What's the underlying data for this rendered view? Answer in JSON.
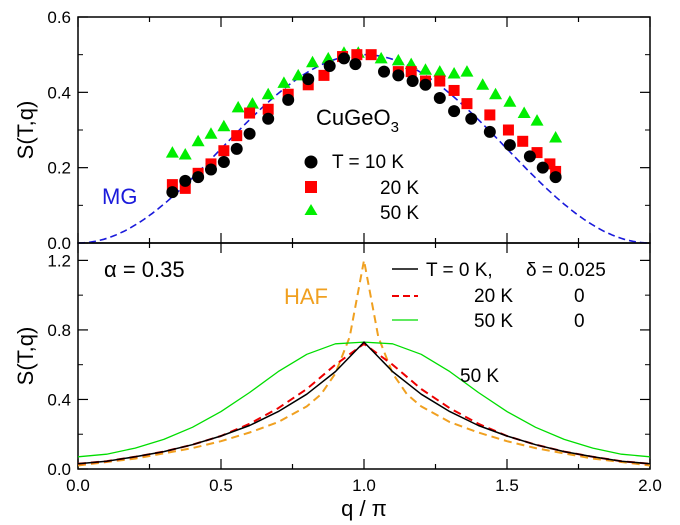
{
  "chart_data": [
    {
      "type": "scatter",
      "title": "",
      "xlabel": "",
      "ylabel": "S(T,q)",
      "xlim": [
        0.0,
        2.0
      ],
      "ylim": [
        0.0,
        0.6
      ],
      "xticks": [],
      "yticks": [
        "0.0",
        "0.2",
        "0.4",
        "0.6"
      ],
      "annotations": {
        "material_prefix": "CuGeO",
        "material_subscript": "3",
        "mg_label": "MG",
        "legend_10K": "T = 10 K",
        "legend_20K": "20 K",
        "legend_50K": "50 K"
      },
      "colors": {
        "10K": "#000000",
        "20K": "#ff0000",
        "50K": "#00ee00",
        "MG": "#1a1adb"
      },
      "series": [
        {
          "name": "T = 10 K",
          "marker": "circle",
          "x": [
            0.33,
            0.375,
            0.42,
            0.465,
            0.51,
            0.555,
            0.6,
            0.665,
            0.735,
            0.805,
            0.88,
            0.93,
            0.97,
            1.07,
            1.12,
            1.17,
            1.215,
            1.265,
            1.315,
            1.375,
            1.44,
            1.51,
            1.58,
            1.625,
            1.67
          ],
          "y": [
            0.135,
            0.165,
            0.175,
            0.195,
            0.215,
            0.25,
            0.29,
            0.33,
            0.38,
            0.435,
            0.47,
            0.49,
            0.475,
            0.455,
            0.445,
            0.43,
            0.42,
            0.385,
            0.35,
            0.33,
            0.295,
            0.26,
            0.23,
            0.2,
            0.175
          ]
        },
        {
          "name": "20 K",
          "marker": "square",
          "x": [
            0.33,
            0.375,
            0.42,
            0.465,
            0.51,
            0.555,
            0.6,
            0.665,
            0.735,
            0.805,
            0.86,
            0.925,
            0.975,
            1.025,
            1.12,
            1.165,
            1.215,
            1.265,
            1.315,
            1.36,
            1.44,
            1.505,
            1.555,
            1.605,
            1.65,
            1.67
          ],
          "y": [
            0.155,
            0.145,
            0.185,
            0.21,
            0.245,
            0.285,
            0.345,
            0.355,
            0.395,
            0.42,
            0.445,
            0.495,
            0.5,
            0.5,
            0.455,
            0.455,
            0.43,
            0.43,
            0.405,
            0.37,
            0.34,
            0.3,
            0.27,
            0.24,
            0.21,
            0.19
          ]
        },
        {
          "name": "50 K",
          "marker": "triangle",
          "x": [
            0.33,
            0.375,
            0.42,
            0.465,
            0.51,
            0.56,
            0.61,
            0.665,
            0.72,
            0.77,
            0.82,
            0.875,
            0.93,
            0.98,
            1.06,
            1.12,
            1.165,
            1.215,
            1.265,
            1.315,
            1.36,
            1.415,
            1.46,
            1.51,
            1.56,
            1.605,
            1.67
          ],
          "y": [
            0.24,
            0.235,
            0.27,
            0.29,
            0.31,
            0.36,
            0.37,
            0.395,
            0.425,
            0.445,
            0.48,
            0.49,
            0.505,
            0.505,
            0.49,
            0.485,
            0.475,
            0.46,
            0.455,
            0.45,
            0.455,
            0.42,
            0.395,
            0.375,
            0.345,
            0.325,
            0.28
          ]
        },
        {
          "name": "MG",
          "type": "line",
          "style": "dashed",
          "function": "0.25*(1 - cos(pi*q))"
        }
      ]
    },
    {
      "type": "line",
      "title": "",
      "xlabel": "q / π",
      "ylabel": "S(T,q)",
      "xlim": [
        0.0,
        2.0
      ],
      "ylim": [
        0.0,
        1.3
      ],
      "xticks": [
        "0.0",
        "0.5",
        "1.0",
        "1.5",
        "2.0"
      ],
      "yticks": [
        "0.0",
        "0.4",
        "0.8",
        "1.2"
      ],
      "annotations": {
        "alpha": "α = 0.35",
        "haf_label": "HAF",
        "label_50K": "50 K",
        "legend_T0": "T = 0 K,",
        "legend_delta": "δ = 0.025",
        "legend_20K": "20 K",
        "legend_20K_delta": "0",
        "legend_50K": "50 K",
        "legend_50K_delta": "0"
      },
      "colors": {
        "T0": "#000000",
        "20K": "#ee0000",
        "50K": "#00dd00",
        "HAF": "#f0a020"
      },
      "series": [
        {
          "name": "T = 0 K, δ = 0.025",
          "style": "solid",
          "x": [
            0,
            0.1,
            0.2,
            0.3,
            0.4,
            0.5,
            0.6,
            0.7,
            0.8,
            0.9,
            1.0,
            1.1,
            1.2,
            1.3,
            1.4,
            1.5,
            1.6,
            1.7,
            1.8,
            1.9,
            2.0
          ],
          "y": [
            0.03,
            0.045,
            0.07,
            0.1,
            0.14,
            0.19,
            0.25,
            0.33,
            0.43,
            0.56,
            0.73,
            0.56,
            0.43,
            0.33,
            0.25,
            0.19,
            0.14,
            0.1,
            0.07,
            0.045,
            0.03
          ]
        },
        {
          "name": "20 K",
          "style": "dashed",
          "x": [
            0,
            0.1,
            0.2,
            0.3,
            0.4,
            0.5,
            0.6,
            0.7,
            0.8,
            0.9,
            1.0,
            1.1,
            1.2,
            1.3,
            1.4,
            1.5,
            1.6,
            1.7,
            1.8,
            1.9,
            2.0
          ],
          "y": [
            0.03,
            0.045,
            0.07,
            0.1,
            0.14,
            0.19,
            0.26,
            0.35,
            0.46,
            0.6,
            0.72,
            0.6,
            0.46,
            0.35,
            0.26,
            0.19,
            0.14,
            0.1,
            0.07,
            0.045,
            0.03
          ]
        },
        {
          "name": "50 K",
          "style": "solid",
          "x": [
            0,
            0.1,
            0.2,
            0.3,
            0.4,
            0.5,
            0.6,
            0.7,
            0.8,
            0.9,
            1.0,
            1.1,
            1.2,
            1.3,
            1.4,
            1.5,
            1.6,
            1.7,
            1.8,
            1.9,
            2.0
          ],
          "y": [
            0.07,
            0.085,
            0.12,
            0.17,
            0.24,
            0.33,
            0.44,
            0.56,
            0.66,
            0.72,
            0.73,
            0.72,
            0.66,
            0.56,
            0.44,
            0.33,
            0.24,
            0.17,
            0.12,
            0.085,
            0.07
          ]
        },
        {
          "name": "HAF",
          "style": "dashed",
          "x": [
            0,
            0.1,
            0.2,
            0.3,
            0.4,
            0.5,
            0.6,
            0.7,
            0.8,
            0.85,
            0.9,
            0.95,
            1.0,
            1.05,
            1.1,
            1.15,
            1.2,
            1.3,
            1.4,
            1.5,
            1.6,
            1.7,
            1.8,
            1.9,
            2.0
          ],
          "y": [
            0.02,
            0.04,
            0.06,
            0.09,
            0.12,
            0.16,
            0.21,
            0.27,
            0.36,
            0.43,
            0.55,
            0.76,
            1.2,
            0.76,
            0.55,
            0.43,
            0.36,
            0.27,
            0.21,
            0.16,
            0.12,
            0.09,
            0.06,
            0.04,
            0.02
          ]
        }
      ]
    }
  ]
}
